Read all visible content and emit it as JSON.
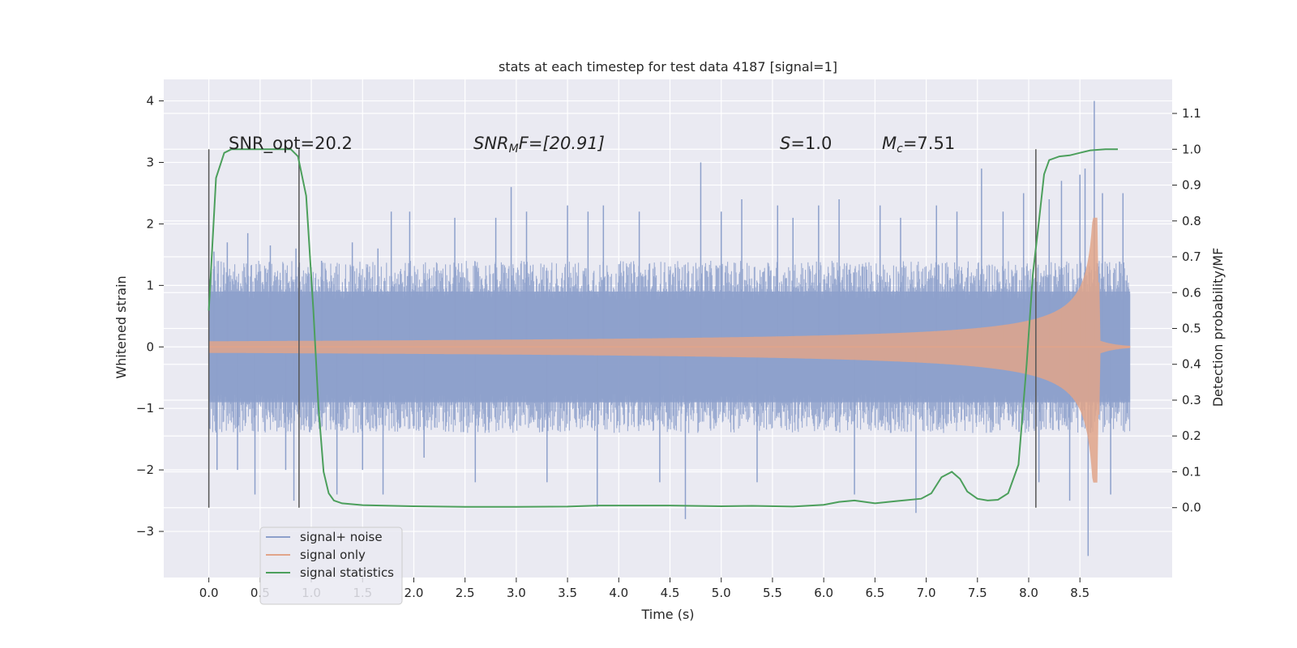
{
  "chart_data": {
    "type": "line",
    "title": "stats at each timestep for test data 4187 [signal=1]",
    "xlabel": "Time (s)",
    "ylabel": "Whitened strain",
    "y2label": "Detection probability/MF",
    "xlim": [
      -0.44,
      9.4
    ],
    "ylim": [
      -3.75,
      4.35
    ],
    "y2lim": [
      -0.195,
      1.195
    ],
    "x_ticks": [
      "0.0",
      "0.5",
      "1.0",
      "1.5",
      "2.0",
      "2.5",
      "3.0",
      "3.5",
      "4.0",
      "4.5",
      "5.0",
      "5.5",
      "6.0",
      "6.5",
      "7.0",
      "7.5",
      "8.0",
      "8.5"
    ],
    "y_ticks": [
      "4",
      "3",
      "2",
      "1",
      "0",
      "−1",
      "−2",
      "−3"
    ],
    "y2_ticks": [
      "1.1",
      "1.0",
      "0.9",
      "0.8",
      "0.7",
      "0.6",
      "0.5",
      "0.4",
      "0.3",
      "0.2",
      "0.1",
      "0.0"
    ],
    "grid": true,
    "legend_position": "lower-left",
    "colors": {
      "background": "#eaeaf2",
      "grid": "#ffffff",
      "noise": "#8da0cb",
      "signal": "#e1a48a",
      "stat": "#4c9f5c",
      "vline": "#555555"
    },
    "annotations": {
      "snr_opt": "SNR_opt=20.2",
      "snr_mf_base": "SNR",
      "snr_mf_sub": "M",
      "snr_mf_rest": "F=[20.91]",
      "s_sym": "S",
      "s_val": "=1.0",
      "mc_sym": "M",
      "mc_sub": "c",
      "mc_val": "=7.51"
    },
    "vlines": [
      {
        "x": 0.0,
        "y2_range": [
          0.0,
          1.0
        ]
      },
      {
        "x": 0.88,
        "y2_range": [
          0.0,
          1.0
        ]
      },
      {
        "x": 8.07,
        "y2_range": [
          0.0,
          1.0
        ]
      }
    ],
    "series": [
      {
        "name": "signal+ noise",
        "kind": "noise",
        "t_range": [
          0.0,
          8.99
        ],
        "envelope": 1.4,
        "spikes": [
          {
            "x": 0.05,
            "y": 1.55
          },
          {
            "x": 0.08,
            "y": -2.0
          },
          {
            "x": 0.18,
            "y": 1.7
          },
          {
            "x": 0.28,
            "y": -2.0
          },
          {
            "x": 0.38,
            "y": 1.85
          },
          {
            "x": 0.45,
            "y": -2.4
          },
          {
            "x": 0.6,
            "y": 1.65
          },
          {
            "x": 0.75,
            "y": -2.0
          },
          {
            "x": 0.83,
            "y": -2.5
          },
          {
            "x": 0.85,
            "y": 1.6
          },
          {
            "x": 1.1,
            "y": 1.4
          },
          {
            "x": 1.25,
            "y": -2.4
          },
          {
            "x": 1.4,
            "y": 1.7
          },
          {
            "x": 1.5,
            "y": -2.0
          },
          {
            "x": 1.65,
            "y": 1.6
          },
          {
            "x": 1.7,
            "y": -2.4
          },
          {
            "x": 1.78,
            "y": 2.2
          },
          {
            "x": 1.96,
            "y": 2.2
          },
          {
            "x": 2.1,
            "y": -1.8
          },
          {
            "x": 2.4,
            "y": 2.1
          },
          {
            "x": 2.6,
            "y": -2.2
          },
          {
            "x": 2.8,
            "y": 2.1
          },
          {
            "x": 2.95,
            "y": 2.6
          },
          {
            "x": 3.1,
            "y": 2.2
          },
          {
            "x": 3.3,
            "y": -2.2
          },
          {
            "x": 3.5,
            "y": 2.3
          },
          {
            "x": 3.7,
            "y": 2.2
          },
          {
            "x": 3.79,
            "y": -2.6
          },
          {
            "x": 3.85,
            "y": 2.3
          },
          {
            "x": 4.2,
            "y": 2.2
          },
          {
            "x": 4.4,
            "y": -2.2
          },
          {
            "x": 4.65,
            "y": -2.8
          },
          {
            "x": 4.8,
            "y": 3.0
          },
          {
            "x": 5.0,
            "y": 2.2
          },
          {
            "x": 5.2,
            "y": 2.4
          },
          {
            "x": 5.35,
            "y": -2.2
          },
          {
            "x": 5.55,
            "y": 2.3
          },
          {
            "x": 5.7,
            "y": 2.1
          },
          {
            "x": 5.95,
            "y": 2.3
          },
          {
            "x": 6.15,
            "y": 2.4
          },
          {
            "x": 6.3,
            "y": -2.4
          },
          {
            "x": 6.55,
            "y": 2.3
          },
          {
            "x": 6.75,
            "y": 2.1
          },
          {
            "x": 6.9,
            "y": -2.7
          },
          {
            "x": 7.1,
            "y": 2.3
          },
          {
            "x": 7.3,
            "y": 2.2
          },
          {
            "x": 7.54,
            "y": 2.9
          },
          {
            "x": 7.75,
            "y": 2.2
          },
          {
            "x": 7.95,
            "y": 2.5
          },
          {
            "x": 8.1,
            "y": -2.2
          },
          {
            "x": 8.2,
            "y": 2.4
          },
          {
            "x": 8.32,
            "y": 2.7
          },
          {
            "x": 8.4,
            "y": -2.5
          },
          {
            "x": 8.5,
            "y": 2.8
          },
          {
            "x": 8.55,
            "y": 2.9
          },
          {
            "x": 8.58,
            "y": -3.4
          },
          {
            "x": 8.64,
            "y": 4.0
          },
          {
            "x": 8.72,
            "y": 2.5
          },
          {
            "x": 8.8,
            "y": -2.4
          },
          {
            "x": 8.92,
            "y": 2.5
          }
        ]
      },
      {
        "name": "signal only",
        "kind": "chirp",
        "t_range": [
          0.0,
          8.99
        ],
        "merger_time": 8.67,
        "peak_amplitude": 2.1
      },
      {
        "name": "signal statistics",
        "kind": "line",
        "axis": "y2",
        "x": [
          0.0,
          0.07,
          0.15,
          0.22,
          0.35,
          0.5,
          0.7,
          0.8,
          0.87,
          0.95,
          1.02,
          1.07,
          1.12,
          1.17,
          1.22,
          1.3,
          1.5,
          2.0,
          2.5,
          3.0,
          3.5,
          3.8,
          4.5,
          5.0,
          5.3,
          5.7,
          6.0,
          6.15,
          6.3,
          6.5,
          6.7,
          6.95,
          7.05,
          7.15,
          7.25,
          7.33,
          7.4,
          7.5,
          7.6,
          7.7,
          7.8,
          7.9,
          7.98,
          8.04,
          8.1,
          8.15,
          8.2,
          8.3,
          8.4,
          8.5,
          8.6,
          8.75,
          8.87
        ],
        "values": [
          0.55,
          0.92,
          0.99,
          1.0,
          1.0,
          1.0,
          1.0,
          1.0,
          0.98,
          0.87,
          0.55,
          0.28,
          0.1,
          0.04,
          0.02,
          0.012,
          0.007,
          0.004,
          0.002,
          0.002,
          0.003,
          0.006,
          0.006,
          0.004,
          0.005,
          0.003,
          0.008,
          0.016,
          0.02,
          0.012,
          0.018,
          0.025,
          0.04,
          0.085,
          0.1,
          0.08,
          0.045,
          0.025,
          0.02,
          0.022,
          0.04,
          0.12,
          0.4,
          0.65,
          0.8,
          0.93,
          0.97,
          0.98,
          0.983,
          0.99,
          0.997,
          1.0,
          1.0
        ]
      }
    ]
  }
}
